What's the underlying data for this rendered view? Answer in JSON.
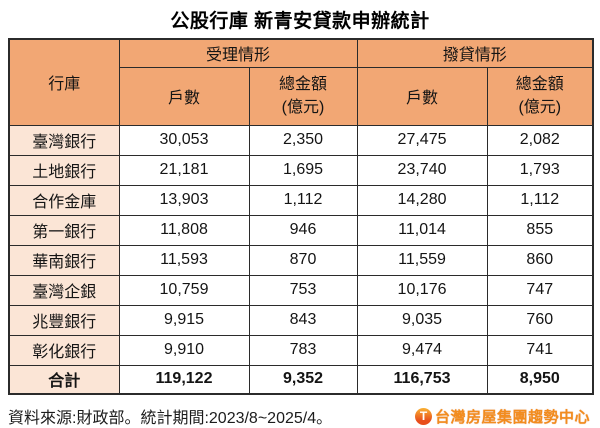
{
  "title": "公股行庫 新青安貸款申辦統計",
  "table": {
    "col_bank_header": "行庫",
    "group_headers": [
      {
        "label": "受理情形"
      },
      {
        "label": "撥貸情形"
      }
    ],
    "sub_headers": [
      "戶數",
      "總金額\n(億元)",
      "戶數",
      "總金額\n(億元)"
    ],
    "rows": [
      [
        "臺灣銀行",
        "30,053",
        "2,350",
        "27,475",
        "2,082"
      ],
      [
        "土地銀行",
        "21,181",
        "1,695",
        "23,740",
        "1,793"
      ],
      [
        "合作金庫",
        "13,903",
        "1,112",
        "14,280",
        "1,112"
      ],
      [
        "第一銀行",
        "11,808",
        "946",
        "11,014",
        "855"
      ],
      [
        "華南銀行",
        "11,593",
        "870",
        "11,559",
        "860"
      ],
      [
        "臺灣企銀",
        "10,759",
        "753",
        "10,176",
        "747"
      ],
      [
        "兆豐銀行",
        "9,915",
        "843",
        "9,035",
        "760"
      ],
      [
        "彰化銀行",
        "9,910",
        "783",
        "9,474",
        "741"
      ]
    ],
    "total": [
      "合計",
      "119,122",
      "9,352",
      "116,753",
      "8,950"
    ]
  },
  "footer": {
    "source": "資料來源:財政部。統計期間:2023/8~2025/4。",
    "logo_letter": "T",
    "logo_text": "台灣房屋集團趨勢中心"
  },
  "colors": {
    "header_bg": "#F2A774",
    "row_label_bg": "#FBE5D6",
    "border": "#2b2b2b",
    "logo_orange": "#F28C1E"
  }
}
